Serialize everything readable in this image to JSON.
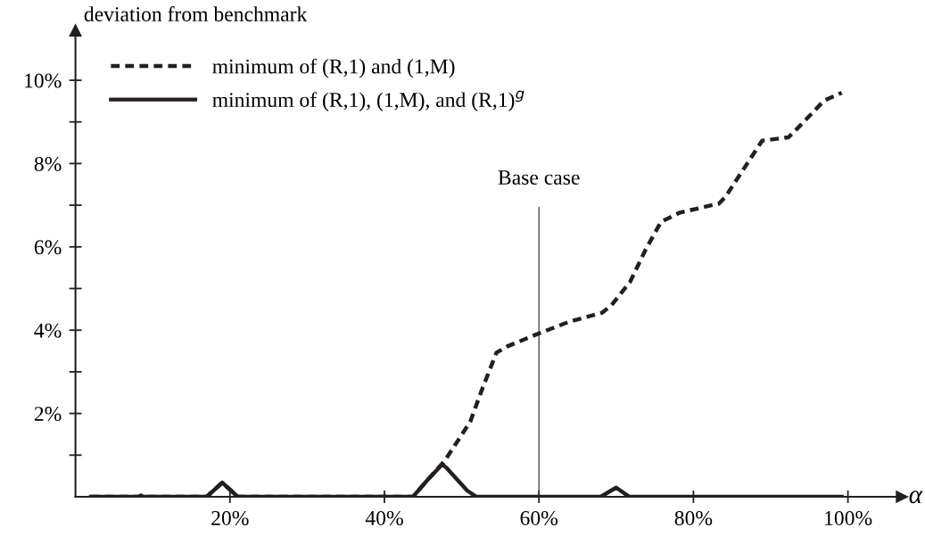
{
  "chart_data": {
    "type": "line",
    "xlabel": "α",
    "ylabel": "deviation from benchmark",
    "xlim": [
      0,
      107
    ],
    "ylim": [
      0,
      11.2
    ],
    "xticks": [
      {
        "value": 20,
        "label": "20%"
      },
      {
        "value": 40,
        "label": "40%"
      },
      {
        "value": 60,
        "label": "60%"
      },
      {
        "value": 80,
        "label": "80%"
      },
      {
        "value": 100,
        "label": "100%"
      }
    ],
    "yticks": [
      {
        "value": 1,
        "label": null
      },
      {
        "value": 2,
        "label": "2%"
      },
      {
        "value": 3,
        "label": null
      },
      {
        "value": 4,
        "label": "4%"
      },
      {
        "value": 5,
        "label": null
      },
      {
        "value": 6,
        "label": "6%"
      },
      {
        "value": 7,
        "label": null
      },
      {
        "value": 8,
        "label": "8%"
      },
      {
        "value": 9,
        "label": null
      },
      {
        "value": 10,
        "label": "10%"
      }
    ],
    "grid": false,
    "legend": "top left",
    "marker": "none",
    "ref_lines": [
      {
        "axis": "x",
        "value": 60,
        "label": "Base case",
        "color": "#3a3a3a",
        "line_style": "solid"
      }
    ],
    "series": [
      {
        "name": "minimum of (R,1) and (1,M)",
        "color": "#231f20",
        "line_style": "dashed",
        "x": [
          2.0,
          8.2,
          8.5,
          8.8,
          17.0,
          19.0,
          21.0,
          43.7,
          45.7,
          47.5,
          48.0,
          51.1,
          52.7,
          54.5,
          55.9,
          59.7,
          63.9,
          68.2,
          69.4,
          71.8,
          73.8,
          75.8,
          78.2,
          83.3,
          84.1,
          88.9,
          92.3,
          93.7,
          96.9,
          99.2
        ],
        "values": [
          0,
          0,
          0.03,
          0,
          0,
          0.34,
          0,
          0,
          0.43,
          0.8,
          0.92,
          1.8,
          2.61,
          3.46,
          3.61,
          3.9,
          4.2,
          4.42,
          4.6,
          5.16,
          5.93,
          6.6,
          6.82,
          7.04,
          7.19,
          8.55,
          8.63,
          8.89,
          9.51,
          9.7
        ]
      },
      {
        "name": "minimum of (R,1), (1,M), and (R,1)$^{g}$",
        "color": "#231f20",
        "line_style": "solid",
        "x": [
          2.0,
          8.2,
          8.5,
          8.8,
          17.0,
          19.0,
          21.0,
          43.7,
          45.7,
          47.5,
          48.0,
          50.7,
          51.9,
          68.0,
          70.0,
          71.7,
          99.2
        ],
        "values": [
          0,
          0,
          0.03,
          0,
          0,
          0.34,
          0,
          0,
          0.43,
          0.78,
          0.7,
          0.15,
          0,
          0,
          0.22,
          0,
          0
        ]
      }
    ]
  }
}
